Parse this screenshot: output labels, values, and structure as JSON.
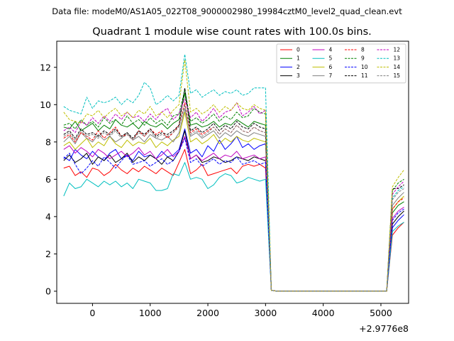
{
  "chart_data": {
    "type": "line",
    "suptitle": "Data file: modeM0/AS1A05_022T08_9000002980_19984cztM0_level2_quad_clean.evt",
    "title": "Quadrant 1 module wise count rates with 100.0s bins.",
    "xlabel": "",
    "ylabel": "",
    "x_offset_text": "+2.9776e8",
    "xlim": [
      -620,
      5480
    ],
    "ylim": [
      -0.65,
      13.4
    ],
    "xticks": [
      0,
      1000,
      2000,
      3000,
      4000,
      5000
    ],
    "yticks": [
      0,
      2,
      4,
      6,
      8,
      10,
      12
    ],
    "legend_position": "top-right",
    "x": [
      -500,
      -400,
      -300,
      -200,
      -100,
      0,
      100,
      200,
      300,
      400,
      500,
      600,
      700,
      800,
      900,
      1000,
      1100,
      1200,
      1300,
      1400,
      1500,
      1600,
      1700,
      1800,
      1900,
      2000,
      2100,
      2200,
      2300,
      2400,
      2500,
      2600,
      2700,
      2800,
      2900,
      3000,
      3100,
      3200,
      3300,
      3400,
      3500,
      3600,
      3700,
      3800,
      3900,
      4000,
      4100,
      4200,
      4300,
      4400,
      4500,
      4600,
      4700,
      4800,
      4900,
      5000,
      5100,
      5200,
      5300,
      5400
    ],
    "gap_after_index": 36,
    "series": [
      {
        "name": "0",
        "color": "#ff0000",
        "dash": "solid",
        "values": [
          6.6,
          6.7,
          6.2,
          6.4,
          6.1,
          6.6,
          6.5,
          6.2,
          6.4,
          6.8,
          6.5,
          6.3,
          6.6,
          6.4,
          6.7,
          6.5,
          6.3,
          6.6,
          6.4,
          6.2,
          6.9,
          7.6,
          6.3,
          6.5,
          6.8,
          6.2,
          6.3,
          6.4,
          6.5,
          6.6,
          6.3,
          6.7,
          6.8,
          6.7,
          6.8,
          6.6,
          0.05,
          0,
          0,
          0,
          0,
          0,
          0,
          0,
          0,
          0,
          0,
          0,
          0,
          0,
          0,
          0,
          0,
          0,
          0,
          0,
          0,
          3.0,
          3.4,
          3.7
        ]
      },
      {
        "name": "1",
        "color": "#008000",
        "dash": "solid",
        "values": [
          8.8,
          8.7,
          9.1,
          8.6,
          8.8,
          9.0,
          8.6,
          8.9,
          8.7,
          9.2,
          8.9,
          8.8,
          9.0,
          8.7,
          9.1,
          8.9,
          8.8,
          9.0,
          8.7,
          9.0,
          9.2,
          10.6,
          8.9,
          9.0,
          8.8,
          8.9,
          9.1,
          8.8,
          9.0,
          8.9,
          9.2,
          9.0,
          8.8,
          9.1,
          9.0,
          8.9,
          0.05,
          0,
          0,
          0,
          0,
          0,
          0,
          0,
          0,
          0,
          0,
          0,
          0,
          0,
          0,
          0,
          0,
          0,
          0,
          0,
          0,
          4.2,
          4.6,
          4.8
        ]
      },
      {
        "name": "2",
        "color": "#0000ff",
        "dash": "solid",
        "values": [
          7.2,
          7.0,
          7.6,
          7.3,
          7.1,
          7.5,
          7.2,
          7.0,
          7.4,
          7.6,
          7.1,
          7.3,
          7.0,
          7.5,
          7.2,
          7.3,
          7.1,
          7.5,
          7.2,
          7.3,
          7.6,
          8.7,
          7.4,
          7.6,
          7.2,
          7.8,
          7.5,
          8.1,
          7.6,
          7.9,
          8.3,
          7.7,
          7.9,
          7.6,
          7.8,
          7.9,
          0.05,
          0,
          0,
          0,
          0,
          0,
          0,
          0,
          0,
          0,
          0,
          0,
          0,
          0,
          0,
          0,
          0,
          0,
          0,
          0,
          0,
          3.4,
          3.8,
          4.1
        ]
      },
      {
        "name": "3",
        "color": "#000000",
        "dash": "solid",
        "values": [
          7.0,
          7.3,
          6.9,
          7.1,
          7.4,
          6.8,
          7.2,
          7.0,
          7.3,
          6.9,
          7.1,
          7.4,
          6.9,
          7.2,
          7.0,
          7.3,
          7.1,
          6.8,
          7.2,
          7.0,
          7.5,
          8.6,
          7.1,
          7.3,
          6.9,
          7.0,
          7.2,
          7.1,
          6.9,
          7.0,
          7.2,
          7.1,
          7.0,
          7.2,
          7.1,
          7.0,
          0.05,
          0,
          0,
          0,
          0,
          0,
          0,
          0,
          0,
          0,
          0,
          0,
          0,
          0,
          0,
          0,
          0,
          0,
          0,
          0,
          0,
          3.6,
          4.0,
          4.3
        ]
      },
      {
        "name": "4",
        "color": "#c000c0",
        "dash": "solid",
        "values": [
          7.6,
          7.8,
          7.4,
          7.7,
          7.5,
          7.2,
          7.6,
          7.4,
          7.1,
          7.3,
          7.5,
          7.2,
          7.4,
          7.7,
          7.3,
          7.5,
          7.1,
          7.3,
          7.6,
          7.2,
          7.5,
          8.3,
          7.1,
          7.3,
          7.0,
          7.2,
          7.4,
          7.1,
          7.3,
          7.2,
          7.5,
          7.1,
          7.2,
          7.3,
          7.1,
          7.2,
          0.05,
          0,
          0,
          0,
          0,
          0,
          0,
          0,
          0,
          0,
          0,
          0,
          0,
          0,
          0,
          0,
          0,
          0,
          0,
          0,
          0,
          3.9,
          4.3,
          4.5
        ]
      },
      {
        "name": "5",
        "color": "#00bfbf",
        "dash": "solid",
        "values": [
          5.1,
          5.8,
          5.5,
          5.6,
          6.0,
          5.8,
          5.6,
          5.9,
          5.7,
          5.9,
          5.6,
          5.8,
          5.5,
          6.0,
          5.9,
          5.8,
          5.4,
          5.4,
          5.5,
          6.3,
          6.2,
          6.9,
          6.0,
          6.1,
          6.0,
          5.5,
          5.7,
          6.1,
          6.3,
          6.2,
          5.8,
          5.9,
          6.1,
          6.0,
          5.9,
          6.0,
          0.05,
          0,
          0,
          0,
          0,
          0,
          0,
          0,
          0,
          0,
          0,
          0,
          0,
          0,
          0,
          0,
          0,
          0,
          0,
          0,
          0,
          3.2,
          3.5,
          3.7
        ]
      },
      {
        "name": "6",
        "color": "#bfbf00",
        "dash": "solid",
        "values": [
          7.8,
          8.0,
          7.6,
          7.9,
          8.2,
          7.7,
          8.0,
          7.8,
          8.3,
          7.9,
          7.7,
          8.1,
          7.8,
          8.0,
          7.9,
          8.2,
          7.7,
          8.0,
          7.8,
          8.1,
          8.3,
          9.6,
          8.0,
          8.2,
          7.9,
          8.1,
          8.4,
          7.9,
          8.2,
          8.0,
          8.3,
          8.1,
          8.0,
          8.2,
          8.1,
          8.0,
          0.05,
          0,
          0,
          0,
          0,
          0,
          0,
          0,
          0,
          0,
          0,
          0,
          0,
          0,
          0,
          0,
          0,
          0,
          0,
          0,
          0,
          4.4,
          4.8,
          5.1
        ]
      },
      {
        "name": "7",
        "color": "#808080",
        "dash": "solid",
        "values": [
          8.0,
          8.3,
          7.9,
          8.5,
          8.2,
          8.0,
          8.4,
          8.1,
          8.3,
          8.0,
          8.2,
          8.5,
          8.1,
          8.3,
          8.0,
          8.4,
          8.2,
          8.1,
          8.3,
          8.0,
          8.5,
          9.8,
          8.3,
          8.5,
          8.2,
          8.4,
          8.6,
          8.2,
          8.5,
          8.3,
          8.6,
          8.4,
          8.3,
          8.5,
          8.4,
          8.3,
          0.05,
          0,
          0,
          0,
          0,
          0,
          0,
          0,
          0,
          0,
          0,
          0,
          0,
          0,
          0,
          0,
          0,
          0,
          0,
          0,
          0,
          4.6,
          5.0,
          5.3
        ]
      },
      {
        "name": "8",
        "color": "#ff0000",
        "dash": "dashed",
        "values": [
          8.2,
          8.4,
          8.0,
          8.5,
          8.3,
          8.1,
          8.6,
          8.2,
          8.5,
          8.8,
          8.3,
          8.4,
          8.1,
          8.6,
          8.3,
          8.7,
          8.4,
          8.6,
          8.2,
          8.5,
          8.9,
          10.1,
          8.5,
          8.7,
          8.4,
          8.6,
          8.8,
          8.4,
          8.7,
          8.5,
          8.9,
          8.6,
          8.5,
          8.8,
          8.6,
          8.5,
          0.05,
          0,
          0,
          0,
          0,
          0,
          0,
          0,
          0,
          0,
          0,
          0,
          0,
          0,
          0,
          0,
          0,
          0,
          0,
          0,
          0,
          4.4,
          4.8,
          5.0
        ]
      },
      {
        "name": "9",
        "color": "#008000",
        "dash": "dashed",
        "values": [
          8.9,
          9.0,
          8.7,
          9.2,
          8.9,
          9.1,
          8.8,
          9.3,
          9.0,
          9.2,
          8.9,
          9.4,
          9.0,
          9.2,
          8.9,
          9.3,
          9.0,
          9.2,
          8.9,
          9.4,
          9.5,
          10.8,
          9.1,
          9.3,
          9.0,
          9.2,
          9.5,
          9.1,
          9.4,
          9.2,
          9.6,
          9.3,
          9.4,
          9.8,
          9.6,
          9.5,
          0.05,
          0,
          0,
          0,
          0,
          0,
          0,
          0,
          0,
          0,
          0,
          0,
          0,
          0,
          0,
          0,
          0,
          0,
          0,
          0,
          0,
          5.4,
          5.8,
          6.0
        ]
      },
      {
        "name": "10",
        "color": "#0000ff",
        "dash": "dashed",
        "values": [
          7.1,
          7.4,
          6.8,
          6.3,
          6.6,
          7.0,
          6.7,
          7.2,
          6.9,
          6.6,
          7.0,
          7.3,
          6.8,
          6.9,
          7.0,
          6.7,
          6.9,
          7.1,
          6.8,
          7.0,
          7.5,
          8.2,
          6.9,
          7.1,
          6.7,
          6.9,
          7.1,
          6.8,
          7.0,
          6.9,
          7.2,
          6.8,
          6.9,
          7.0,
          6.8,
          6.9,
          0.05,
          0,
          0,
          0,
          0,
          0,
          0,
          0,
          0,
          0,
          0,
          0,
          0,
          0,
          0,
          0,
          0,
          0,
          0,
          0,
          0,
          3.8,
          4.2,
          4.4
        ]
      },
      {
        "name": "11",
        "color": "#000000",
        "dash": "dashed",
        "values": [
          8.4,
          8.6,
          8.2,
          8.7,
          8.4,
          8.5,
          8.3,
          8.6,
          8.4,
          8.7,
          8.3,
          8.5,
          8.2,
          8.6,
          8.4,
          8.7,
          8.3,
          8.5,
          8.4,
          8.6,
          8.9,
          10.9,
          8.6,
          8.8,
          8.5,
          8.7,
          9.0,
          8.6,
          8.9,
          8.7,
          9.1,
          8.8,
          8.7,
          9.0,
          8.8,
          8.7,
          0.05,
          0,
          0,
          0,
          0,
          0,
          0,
          0,
          0,
          0,
          0,
          0,
          0,
          0,
          0,
          0,
          0,
          0,
          0,
          0,
          0,
          5.5,
          5.5,
          5.7
        ]
      },
      {
        "name": "12",
        "color": "#c000c0",
        "dash": "dashed",
        "values": [
          8.6,
          8.8,
          8.5,
          9.1,
          8.9,
          9.3,
          9.0,
          9.4,
          9.1,
          9.5,
          9.2,
          9.6,
          9.3,
          9.4,
          9.1,
          9.5,
          9.2,
          9.6,
          9.8,
          9.2,
          9.5,
          10.3,
          9.3,
          9.6,
          9.1,
          9.4,
          9.8,
          9.3,
          9.6,
          9.7,
          10.1,
          9.4,
          9.6,
          9.9,
          9.5,
          9.7,
          0.05,
          0,
          0,
          0,
          0,
          0,
          0,
          0,
          0,
          0,
          0,
          0,
          0,
          0,
          0,
          0,
          0,
          0,
          0,
          0,
          0,
          5.2,
          5.6,
          5.9
        ]
      },
      {
        "name": "13",
        "color": "#00bfbf",
        "dash": "dashed",
        "values": [
          9.9,
          9.7,
          9.6,
          9.5,
          10.4,
          9.8,
          10.2,
          10.1,
          10.2,
          10.4,
          10.0,
          10.3,
          10.1,
          10.5,
          11.2,
          10.9,
          10.0,
          10.2,
          10.5,
          10.2,
          10.5,
          12.7,
          10.6,
          10.8,
          10.4,
          10.6,
          10.8,
          10.5,
          10.7,
          10.6,
          10.8,
          10.5,
          10.6,
          10.9,
          10.9,
          10.9,
          0.05,
          0,
          0,
          0,
          0,
          0,
          0,
          0,
          0,
          0,
          0,
          0,
          0,
          0,
          0,
          0,
          0,
          0,
          0,
          0,
          0,
          5.0,
          5.4,
          5.6
        ]
      },
      {
        "name": "14",
        "color": "#bfbf00",
        "dash": "dashed",
        "values": [
          9.6,
          9.2,
          9.1,
          9.0,
          9.5,
          9.4,
          9.7,
          9.3,
          9.6,
          9.8,
          9.4,
          9.6,
          9.3,
          9.7,
          9.5,
          9.9,
          9.4,
          9.6,
          9.3,
          9.7,
          10.0,
          12.4,
          9.6,
          9.8,
          9.5,
          9.7,
          10.0,
          9.6,
          9.9,
          9.7,
          10.1,
          9.8,
          9.7,
          10.0,
          9.8,
          9.7,
          0.05,
          0,
          0,
          0,
          0,
          0,
          0,
          0,
          0,
          0,
          0,
          0,
          0,
          0,
          0,
          0,
          0,
          0,
          0,
          0,
          0,
          5.6,
          6.1,
          6.5
        ]
      },
      {
        "name": "15",
        "color": "#808080",
        "dash": "dashed",
        "values": [
          8.3,
          8.5,
          8.1,
          8.6,
          8.3,
          8.4,
          8.2,
          8.5,
          8.3,
          8.6,
          8.2,
          8.4,
          8.1,
          8.5,
          8.3,
          8.6,
          8.2,
          8.4,
          8.3,
          8.5,
          8.8,
          10.0,
          8.4,
          8.6,
          8.3,
          8.5,
          8.8,
          8.4,
          8.7,
          8.5,
          8.9,
          8.6,
          8.5,
          8.8,
          8.6,
          8.5,
          0.05,
          0,
          0,
          0,
          0,
          0,
          0,
          0,
          0,
          0,
          0,
          0,
          0,
          0,
          0,
          0,
          0,
          0,
          0,
          0,
          0,
          4.9,
          5.3,
          5.5
        ]
      }
    ]
  }
}
